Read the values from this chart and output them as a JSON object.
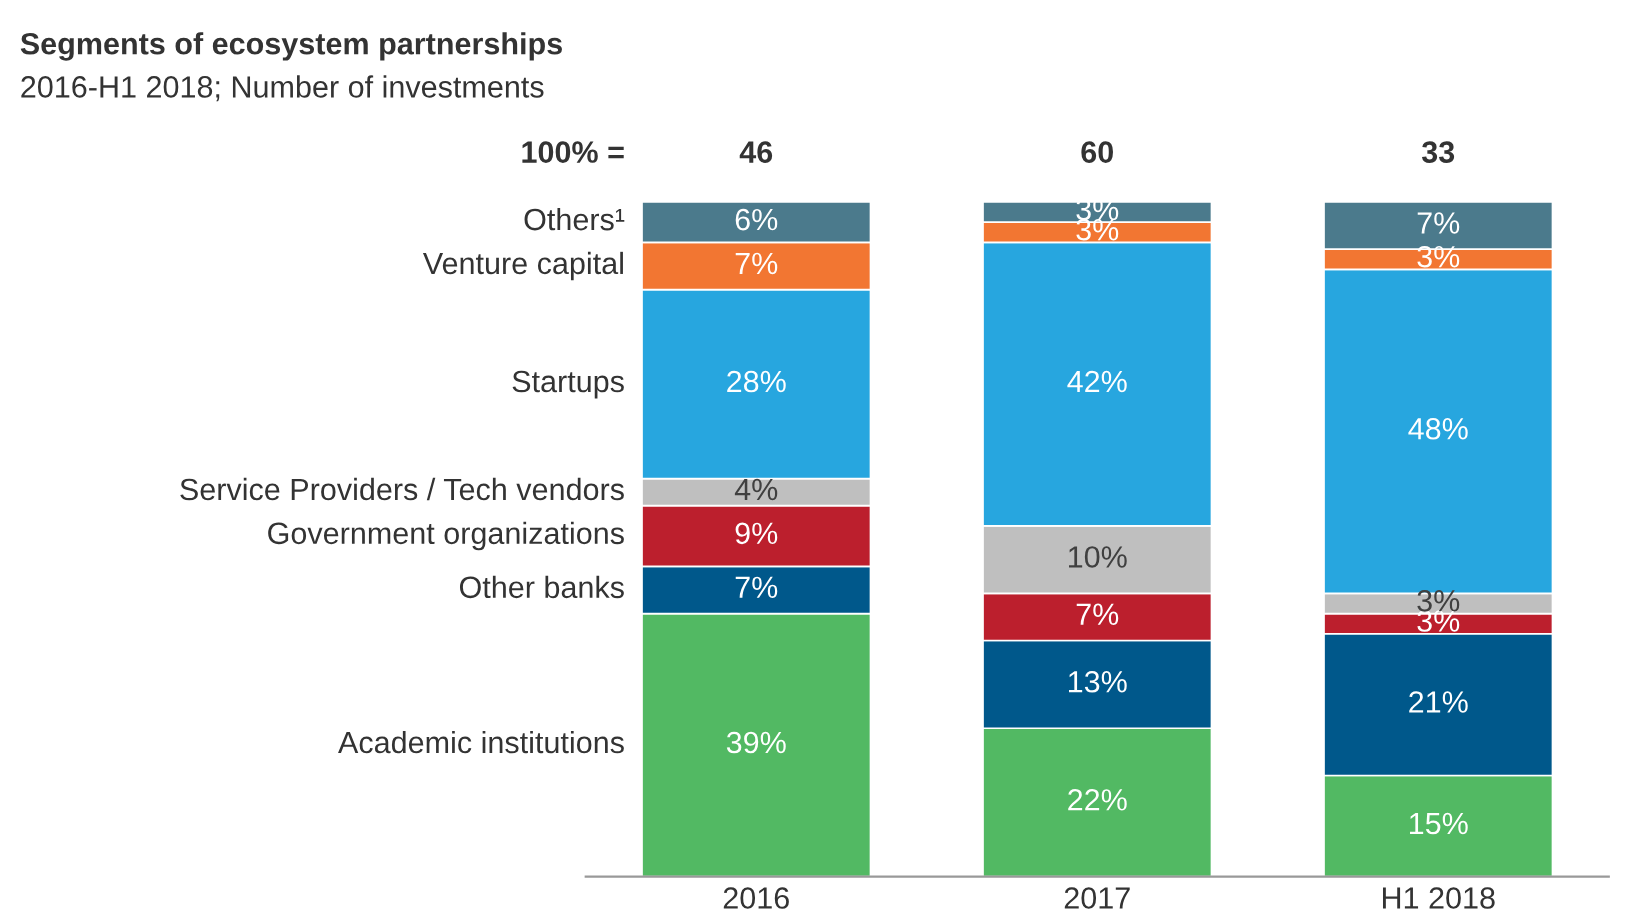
{
  "chart_data": {
    "type": "bar",
    "stacked": true,
    "title": "Segments of ecosystem partnerships",
    "subtitle": "2016-H1 2018; Number of investments",
    "categories": [
      "2016",
      "2017",
      "H1 2018"
    ],
    "series": [
      {
        "name": "Academic institutions",
        "color": "#52b963",
        "values": [
          39,
          22,
          15
        ],
        "value_labels": [
          "39%",
          "22%",
          "15%"
        ]
      },
      {
        "name": "Other banks",
        "color": "#00588b",
        "values": [
          7,
          13,
          21
        ],
        "value_labels": [
          "7%",
          "13%",
          "21%"
        ]
      },
      {
        "name": "Government organizations",
        "color": "#bc1f2d",
        "values": [
          9,
          7,
          3
        ],
        "value_labels": [
          "9%",
          "7%",
          "3%"
        ]
      },
      {
        "name": "Service Providers / Tech vendors",
        "color": "#bfbfbf",
        "values": [
          4,
          10,
          3
        ],
        "value_labels": [
          "4%",
          "10%",
          "3%"
        ]
      },
      {
        "name": "Startups",
        "color": "#27a6df",
        "values": [
          28,
          42,
          48
        ],
        "value_labels": [
          "28%",
          "42%",
          "48%"
        ]
      },
      {
        "name": "Venture capital",
        "color": "#f27632",
        "values": [
          7,
          3,
          3
        ],
        "value_labels": [
          "7%",
          "3%",
          "3%"
        ]
      },
      {
        "name": "Others¹",
        "color": "#4b7a8c",
        "values": [
          6,
          3,
          7
        ],
        "value_labels": [
          "6%",
          "3%",
          "7%"
        ]
      }
    ],
    "annotations": [
      "100% =",
      "46",
      "60",
      "33"
    ],
    "legend": false,
    "grid": false
  }
}
